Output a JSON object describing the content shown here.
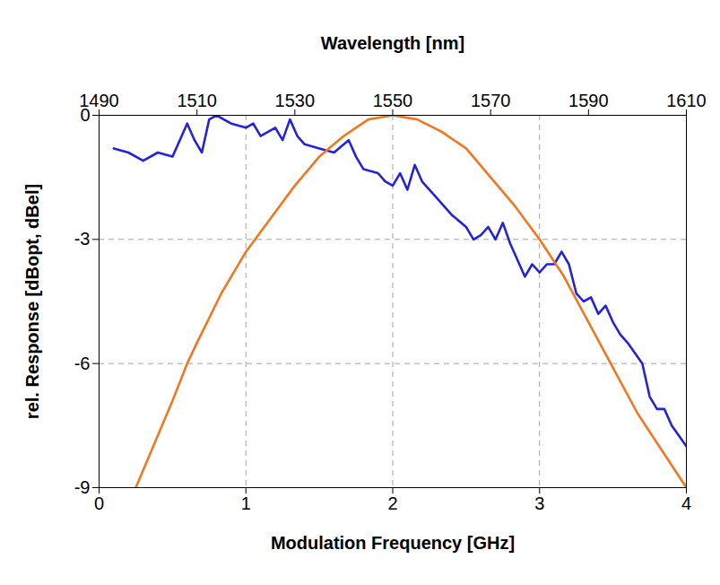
{
  "chart_data": {
    "type": "line",
    "xlabel": "Modulation Frequency [GHz]",
    "x2label": "Wavelength [nm]",
    "ylabel": "rel. Response [dBopt, dBel]",
    "xlim": [
      0,
      4
    ],
    "xticks": [
      0,
      1,
      2,
      3,
      4
    ],
    "x2lim": [
      1490,
      1610
    ],
    "x2ticks": [
      1490,
      1510,
      1530,
      1550,
      1570,
      1590,
      1610
    ],
    "ylim": [
      -9,
      0
    ],
    "yticks": [
      0,
      -3,
      -6,
      -9
    ],
    "grid": true,
    "series": [
      {
        "color": "#2323d9",
        "axis": "x",
        "x": [
          0.1,
          0.2,
          0.3,
          0.4,
          0.5,
          0.55,
          0.6,
          0.65,
          0.7,
          0.75,
          0.8,
          0.9,
          1.0,
          1.05,
          1.1,
          1.2,
          1.25,
          1.3,
          1.35,
          1.4,
          1.5,
          1.6,
          1.7,
          1.75,
          1.8,
          1.9,
          1.95,
          2.0,
          2.05,
          2.1,
          2.15,
          2.2,
          2.3,
          2.4,
          2.5,
          2.55,
          2.6,
          2.65,
          2.7,
          2.75,
          2.8,
          2.9,
          2.95,
          3.0,
          3.05,
          3.1,
          3.15,
          3.2,
          3.25,
          3.3,
          3.35,
          3.4,
          3.45,
          3.5,
          3.55,
          3.6,
          3.7,
          3.75,
          3.8,
          3.85,
          3.9,
          4.0
        ],
        "values": [
          -0.8,
          -0.9,
          -1.1,
          -0.9,
          -1.0,
          -0.6,
          -0.2,
          -0.6,
          -0.9,
          -0.1,
          0,
          -0.2,
          -0.3,
          -0.2,
          -0.5,
          -0.3,
          -0.6,
          -0.1,
          -0.5,
          -0.7,
          -0.8,
          -0.9,
          -0.6,
          -1.0,
          -1.3,
          -1.4,
          -1.6,
          -1.7,
          -1.4,
          -1.8,
          -1.2,
          -1.6,
          -2.0,
          -2.4,
          -2.7,
          -3.0,
          -2.9,
          -2.7,
          -3.0,
          -2.6,
          -3.1,
          -3.9,
          -3.6,
          -3.8,
          -3.6,
          -3.6,
          -3.3,
          -3.6,
          -4.3,
          -4.5,
          -4.4,
          -4.8,
          -4.6,
          -5.0,
          -5.3,
          -5.5,
          -6.0,
          -6.8,
          -7.1,
          -7.1,
          -7.5,
          -8.0
        ]
      },
      {
        "color": "#f07820",
        "axis": "x2",
        "x": [
          1497.5,
          1500,
          1505,
          1508,
          1510,
          1515,
          1520,
          1525,
          1530,
          1535,
          1540,
          1545,
          1550,
          1555,
          1560,
          1565,
          1570,
          1575,
          1580,
          1585,
          1590,
          1595,
          1600,
          1605,
          1610
        ],
        "values": [
          -9.0,
          -8.3,
          -6.9,
          -6.0,
          -5.5,
          -4.3,
          -3.3,
          -2.5,
          -1.7,
          -1.0,
          -0.5,
          -0.1,
          0,
          -0.1,
          -0.4,
          -0.8,
          -1.5,
          -2.2,
          -3.0,
          -3.9,
          -5.0,
          -6.1,
          -7.2,
          -8.1,
          -9.0
        ]
      }
    ]
  }
}
